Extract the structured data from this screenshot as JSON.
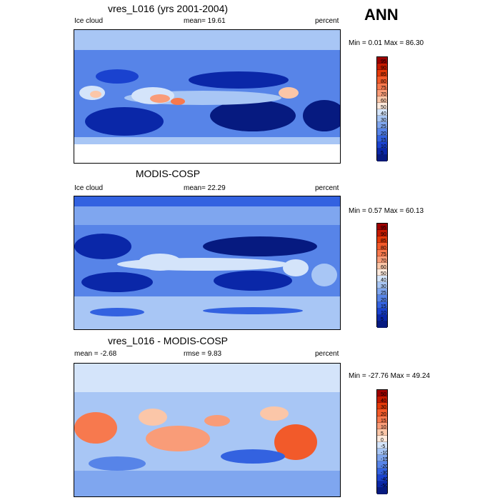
{
  "season": "ANN",
  "panels": [
    {
      "title": "vres_L016 (yrs 2001-2004)",
      "left_label": "Ice cloud",
      "center_label": "mean=  19.61",
      "right_label": "percent",
      "minmax": "Min =   0.01 Max =  86.30",
      "levels": [
        "95",
        "90",
        "85",
        "80",
        "75",
        "70",
        "60",
        "50",
        "40",
        "30",
        "25",
        "20",
        "15",
        "10",
        "5"
      ],
      "colors": [
        "#9e0000",
        "#c41a00",
        "#e33a0a",
        "#f25a2a",
        "#f7794e",
        "#f99c78",
        "#fbc6a8",
        "#fde9dc",
        "#d4e4fa",
        "#a8c6f5",
        "#7fa6ef",
        "#5784e8",
        "#3362e0",
        "#1a42cf",
        "#0a27a8",
        "#061a80"
      ]
    },
    {
      "title": "MODIS-COSP",
      "left_label": "Ice cloud",
      "center_label": "mean=  22.29",
      "right_label": "percent",
      "minmax": "Min =   0.57 Max =  60.13",
      "levels": [
        "95",
        "90",
        "85",
        "80",
        "75",
        "70",
        "60",
        "50",
        "40",
        "30",
        "25",
        "20",
        "15",
        "10",
        "5"
      ],
      "colors": [
        "#9e0000",
        "#c41a00",
        "#e33a0a",
        "#f25a2a",
        "#f7794e",
        "#f99c78",
        "#fbc6a8",
        "#fde9dc",
        "#d4e4fa",
        "#a8c6f5",
        "#7fa6ef",
        "#5784e8",
        "#3362e0",
        "#1a42cf",
        "#0a27a8",
        "#061a80"
      ]
    },
    {
      "title": "vres_L016 - MODIS-COSP",
      "left_label": "mean =  -2.68",
      "center_label": "rmse =   9.83",
      "right_label": "percent",
      "minmax": "Min = -27.76 Max =  49.24",
      "levels": [
        "50",
        "40",
        "30",
        "20",
        "15",
        "10",
        "5",
        "0",
        "-5",
        "-10",
        "-15",
        "-20",
        "-30",
        "-40",
        "-50"
      ],
      "colors": [
        "#9e0000",
        "#c41a00",
        "#e33a0a",
        "#f25a2a",
        "#f7794e",
        "#f99c78",
        "#fbc6a8",
        "#fde9dc",
        "#d4e4fa",
        "#a8c6f5",
        "#7fa6ef",
        "#5784e8",
        "#3362e0",
        "#1a42cf",
        "#0a27a8",
        "#061a80"
      ]
    }
  ]
}
